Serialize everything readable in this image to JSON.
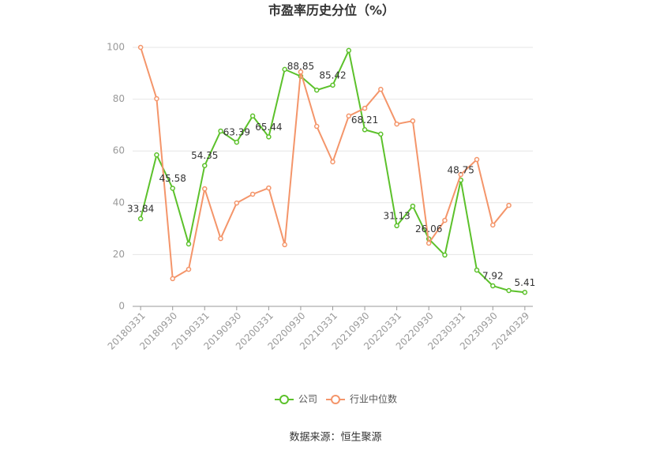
{
  "chart_data": {
    "type": "line",
    "title": "市盈率历史分位（%）",
    "source": "数据来源：恒生聚源",
    "categories": [
      "20180331",
      null,
      "20180930",
      null,
      "20190331",
      null,
      "20190930",
      null,
      "20200331",
      null,
      "20200930",
      null,
      "20210331",
      null,
      "20210930",
      null,
      "20220331",
      null,
      "20220930",
      null,
      "20230331",
      null,
      "20230930",
      null,
      "20240329"
    ],
    "series": [
      {
        "name": "公司",
        "color": "#5cc12b",
        "values": [
          33.84,
          58.5,
          45.58,
          24.1,
          54.35,
          67.7,
          63.39,
          73.5,
          65.44,
          91.5,
          88.85,
          83.5,
          85.42,
          98.8,
          68.21,
          66.5,
          31.13,
          38.7,
          26.06,
          19.8,
          48.75,
          14.0,
          7.92,
          6.1,
          5.41
        ]
      },
      {
        "name": "行业中位数",
        "color": "#f4956a",
        "values": [
          100,
          80.2,
          10.7,
          14.3,
          45.4,
          26.2,
          39.9,
          43.3,
          45.7,
          23.8,
          90.5,
          69.5,
          55.8,
          73.5,
          76.5,
          83.8,
          70.4,
          71.6,
          24.4,
          33.2,
          50.9,
          56.7,
          31.4,
          39.0,
          null
        ]
      }
    ],
    "ylim": [
      0,
      100
    ],
    "yticks": [
      0,
      20,
      40,
      60,
      80,
      100
    ],
    "grid": true
  }
}
